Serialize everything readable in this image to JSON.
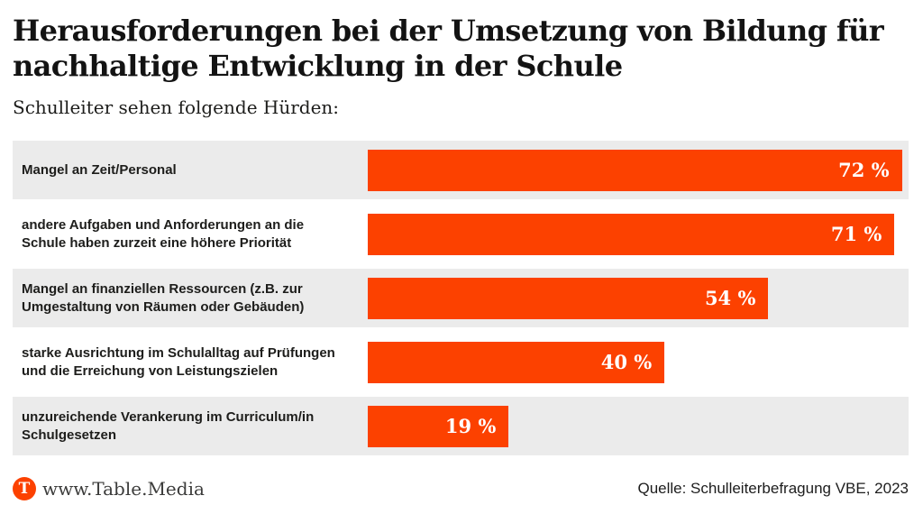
{
  "page": {
    "title": "Herausforderungen bei der Umsetzung von Bildung für nachhaltige Entwicklung in der Schule",
    "subtitle": "Schulleiter sehen folgende Hürden:"
  },
  "chart_data": {
    "type": "bar",
    "orientation": "horizontal",
    "title": "Herausforderungen bei der Umsetzung von Bildung für nachhaltige Entwicklung in der Schule",
    "subtitle": "Schulleiter sehen folgende Hürden:",
    "categories": [
      "Mangel an Zeit/Personal",
      "andere Aufgaben und Anforderungen an die Schule haben zurzeit eine höhere Priorität",
      "Mangel an finanziellen Ressourcen (z.B. zur Umgestaltung von Räumen oder Gebäuden)",
      "starke Ausrichtung im Schulalltag auf Prüfungen und die Erreichung von Leistungszielen",
      "unzureichende Verankerung im Curriculum/in Schulgesetzen"
    ],
    "values": [
      72,
      71,
      54,
      40,
      19
    ],
    "value_labels": [
      "72 %",
      "71 %",
      "54 %",
      "40 %",
      "19 %"
    ],
    "unit": "%",
    "xlabel": "",
    "ylabel": "",
    "xlim": [
      0,
      72.9
    ],
    "grid": false,
    "legend": "none",
    "bar_color": "#fc4100",
    "row_alt_color": "#ebebeb",
    "value_label_color": "#ffffff"
  },
  "footer": {
    "logo_letter": "T",
    "site": "www.Table.Media",
    "source": "Quelle: Schulleiterbefragung VBE, 2023"
  }
}
